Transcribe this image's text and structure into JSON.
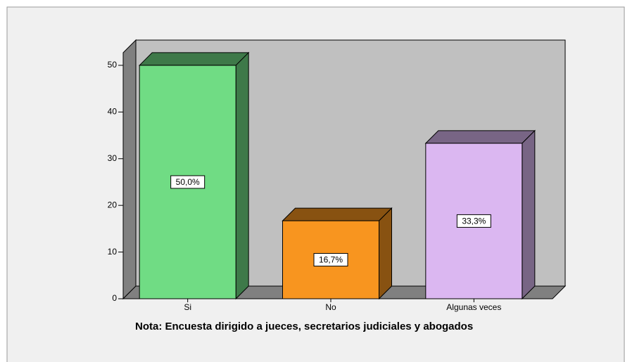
{
  "chart_data": {
    "type": "bar3d",
    "categories": [
      "Si",
      "No",
      "Algunas veces"
    ],
    "values": [
      50,
      16.7,
      33.3
    ],
    "value_labels": [
      "50,0%",
      "16,7%",
      "33,3%"
    ],
    "colors": [
      "#70dc84",
      "#f8951f",
      "#dbb7f1"
    ],
    "ylim": [
      0,
      52.7
    ],
    "yticks": [
      0,
      10,
      20,
      30,
      40,
      50
    ],
    "note": "Nota: Encuesta dirigido a jueces, secretarios judiciales y abogados"
  }
}
